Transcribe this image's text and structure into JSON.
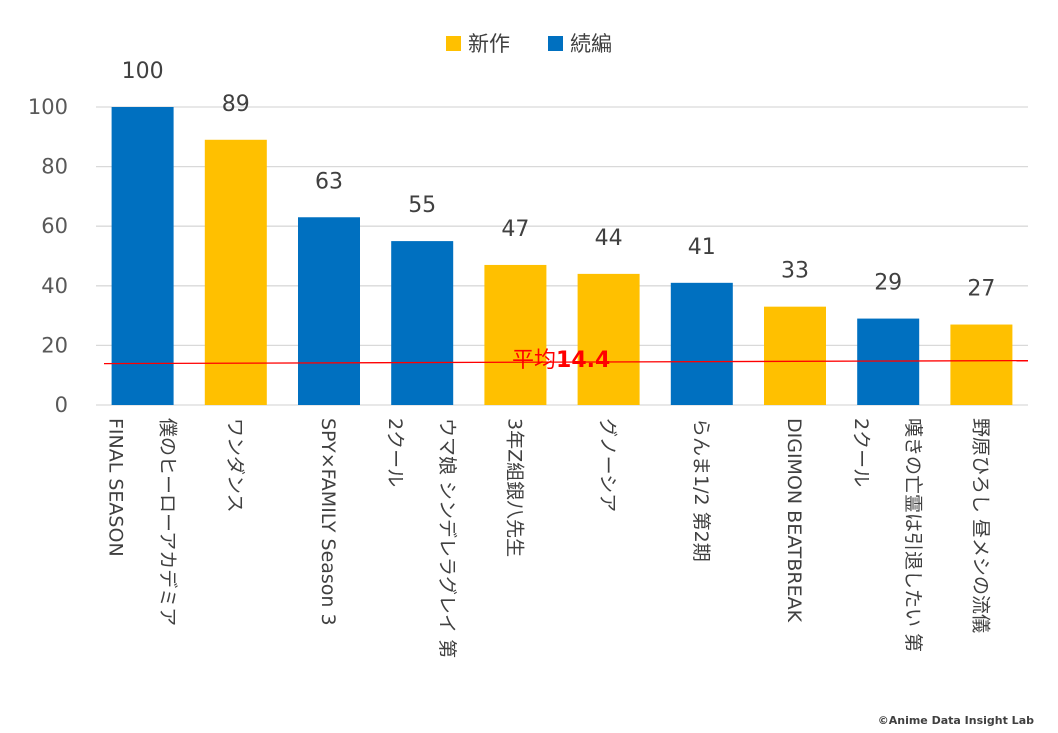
{
  "chart_data": {
    "type": "bar",
    "title": "",
    "xlabel": "",
    "ylabel": "",
    "ylim": [
      0,
      100
    ],
    "yticks": [
      0,
      20,
      40,
      60,
      80,
      100
    ],
    "grid": true,
    "legend_position": "top-center",
    "legend": [
      {
        "key": "new",
        "label": "新作",
        "color": "#FFC000"
      },
      {
        "key": "sequel",
        "label": "続編",
        "color": "#0070C0"
      }
    ],
    "categories": [
      {
        "lines": [
          "僕のヒーローアカデミア",
          "FINAL SEASON"
        ],
        "value": 100,
        "series": "sequel"
      },
      {
        "lines": [
          "ワンダンス"
        ],
        "value": 89,
        "series": "new"
      },
      {
        "lines": [
          "SPY×FAMILY Season 3"
        ],
        "value": 63,
        "series": "sequel"
      },
      {
        "lines": [
          "ウマ娘 シンデレラグレイ 第",
          "2クール"
        ],
        "value": 55,
        "series": "sequel"
      },
      {
        "lines": [
          "3年Z組銀八先生"
        ],
        "value": 47,
        "series": "new"
      },
      {
        "lines": [
          "グノーシア"
        ],
        "value": 44,
        "series": "new"
      },
      {
        "lines": [
          "らんま1/2 第2期"
        ],
        "value": 41,
        "series": "sequel"
      },
      {
        "lines": [
          "DIGIMON BEATBREAK"
        ],
        "value": 33,
        "series": "new"
      },
      {
        "lines": [
          "嘆きの亡霊は引退したい 第",
          "2クール"
        ],
        "value": 29,
        "series": "sequel"
      },
      {
        "lines": [
          "野原ひろし 昼メシの流儀"
        ],
        "value": 27,
        "series": "new"
      }
    ],
    "average": {
      "label": "平均",
      "value": 14.4,
      "value_text": "14.4",
      "color": "#FF0000"
    }
  },
  "credit": "©Anime Data Insight Lab"
}
